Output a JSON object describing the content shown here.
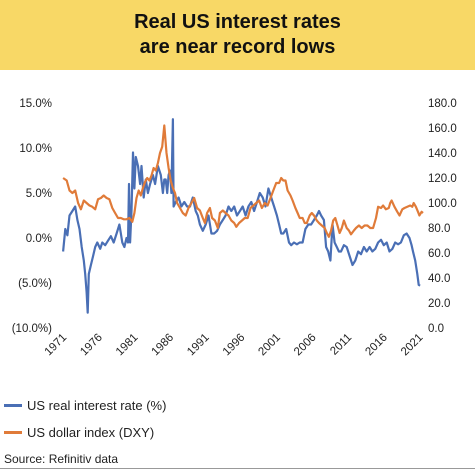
{
  "title": {
    "line1": "Real US interest rates",
    "line2": "are near record lows"
  },
  "colors": {
    "banner": "#f8d866",
    "real_rate": "#4a6fb5",
    "dxy": "#e07b39"
  },
  "chart_data": {
    "type": "line",
    "title": "Real US interest rates are near record lows",
    "x_ticks": [
      "1971",
      "1976",
      "1981",
      "1986",
      "1991",
      "1996",
      "2001",
      "2006",
      "2011",
      "2016",
      "2021"
    ],
    "x_range": [
      1970,
      2021.5
    ],
    "y_left": {
      "ticks": [
        "15.0%",
        "10.0%",
        "5.0%",
        "0.0%",
        "(5.0%)",
        "(10.0%)"
      ],
      "tick_values": [
        15,
        10,
        5,
        0,
        -5,
        -10
      ],
      "range": [
        -10,
        15
      ]
    },
    "y_right": {
      "ticks": [
        "180.0",
        "160.0",
        "140.0",
        "120.0",
        "100.0",
        "80.0",
        "60.0",
        "40.0",
        "20.0",
        "0.0"
      ],
      "tick_values": [
        180,
        160,
        140,
        120,
        100,
        80,
        60,
        40,
        20,
        0
      ],
      "range": [
        0,
        180
      ]
    },
    "grid": false,
    "legend_position": "bottom",
    "source": "Source: Refinitiv data",
    "series": [
      {
        "name": "US real interest rate (%)",
        "axis": "left",
        "color": "#4a6fb5",
        "points": [
          [
            1971.0,
            -1.5
          ],
          [
            1971.3,
            1.0
          ],
          [
            1971.6,
            0.3
          ],
          [
            1971.9,
            2.5
          ],
          [
            1972.3,
            3.0
          ],
          [
            1972.7,
            3.5
          ],
          [
            1973.0,
            2.0
          ],
          [
            1973.3,
            1.0
          ],
          [
            1973.6,
            -1.0
          ],
          [
            1973.9,
            -2.5
          ],
          [
            1974.1,
            -4.0
          ],
          [
            1974.3,
            -6.0
          ],
          [
            1974.45,
            -8.3
          ],
          [
            1974.6,
            -4.0
          ],
          [
            1974.9,
            -3.0
          ],
          [
            1975.2,
            -2.0
          ],
          [
            1975.5,
            -1.0
          ],
          [
            1975.8,
            -0.5
          ],
          [
            1976.2,
            -1.2
          ],
          [
            1976.5,
            -0.5
          ],
          [
            1976.9,
            -0.8
          ],
          [
            1977.3,
            -0.3
          ],
          [
            1977.7,
            0.2
          ],
          [
            1978.1,
            -0.5
          ],
          [
            1978.5,
            0.5
          ],
          [
            1978.9,
            1.5
          ],
          [
            1979.3,
            -0.5
          ],
          [
            1979.6,
            -1.0
          ],
          [
            1979.9,
            0.0
          ],
          [
            1980.1,
            -0.5
          ],
          [
            1980.25,
            6.0
          ],
          [
            1980.4,
            -0.5
          ],
          [
            1980.6,
            3.0
          ],
          [
            1980.8,
            9.5
          ],
          [
            1981.0,
            5.5
          ],
          [
            1981.2,
            9.0
          ],
          [
            1981.5,
            8.0
          ],
          [
            1981.8,
            6.0
          ],
          [
            1982.0,
            8.0
          ],
          [
            1982.3,
            4.5
          ],
          [
            1982.6,
            6.5
          ],
          [
            1982.9,
            5.0
          ],
          [
            1983.2,
            6.0
          ],
          [
            1983.6,
            7.0
          ],
          [
            1983.9,
            6.0
          ],
          [
            1984.3,
            8.0
          ],
          [
            1984.7,
            7.0
          ],
          [
            1985.0,
            5.0
          ],
          [
            1985.2,
            6.5
          ],
          [
            1985.4,
            6.5
          ],
          [
            1985.6,
            5.0
          ],
          [
            1985.8,
            7.0
          ],
          [
            1986.0,
            7.5
          ],
          [
            1986.2,
            5.0
          ],
          [
            1986.4,
            13.2
          ],
          [
            1986.5,
            3.5
          ],
          [
            1986.8,
            4.0
          ],
          [
            1987.2,
            4.5
          ],
          [
            1987.6,
            3.5
          ],
          [
            1988.0,
            4.0
          ],
          [
            1988.4,
            3.5
          ],
          [
            1988.8,
            3.5
          ],
          [
            1989.2,
            4.5
          ],
          [
            1989.6,
            3.0
          ],
          [
            1989.9,
            2.5
          ],
          [
            1990.2,
            1.5
          ],
          [
            1990.6,
            0.8
          ],
          [
            1991.0,
            1.5
          ],
          [
            1991.4,
            2.5
          ],
          [
            1991.8,
            0.5
          ],
          [
            1992.2,
            0.5
          ],
          [
            1992.6,
            0.8
          ],
          [
            1993.0,
            1.5
          ],
          [
            1993.4,
            2.0
          ],
          [
            1993.8,
            2.5
          ],
          [
            1994.2,
            3.5
          ],
          [
            1994.6,
            3.0
          ],
          [
            1995.0,
            3.5
          ],
          [
            1995.4,
            2.5
          ],
          [
            1995.8,
            3.0
          ],
          [
            1996.2,
            3.5
          ],
          [
            1996.6,
            2.5
          ],
          [
            1997.0,
            3.5
          ],
          [
            1997.4,
            4.0
          ],
          [
            1997.8,
            3.0
          ],
          [
            1998.2,
            4.0
          ],
          [
            1998.6,
            5.0
          ],
          [
            1999.0,
            4.5
          ],
          [
            1999.4,
            3.5
          ],
          [
            1999.8,
            5.5
          ],
          [
            2000.2,
            4.5
          ],
          [
            2000.6,
            3.5
          ],
          [
            2001.0,
            2.5
          ],
          [
            2001.3,
            1.5
          ],
          [
            2001.6,
            0.5
          ],
          [
            2001.9,
            0.5
          ],
          [
            2002.3,
            1.0
          ],
          [
            2002.7,
            -0.5
          ],
          [
            2003.0,
            -0.8
          ],
          [
            2003.4,
            -0.5
          ],
          [
            2003.8,
            -0.7
          ],
          [
            2004.2,
            -0.5
          ],
          [
            2004.6,
            -0.5
          ],
          [
            2005.0,
            1.0
          ],
          [
            2005.4,
            1.5
          ],
          [
            2005.8,
            1.5
          ],
          [
            2006.2,
            2.0
          ],
          [
            2006.6,
            2.5
          ],
          [
            2006.9,
            3.0
          ],
          [
            2007.2,
            2.5
          ],
          [
            2007.6,
            2.0
          ],
          [
            2007.9,
            -1.0
          ],
          [
            2008.2,
            -1.5
          ],
          [
            2008.5,
            -2.5
          ],
          [
            2008.8,
            1.5
          ],
          [
            2009.1,
            -0.5
          ],
          [
            2009.4,
            -1.0
          ],
          [
            2009.7,
            -1.5
          ],
          [
            2010.0,
            -1.5
          ],
          [
            2010.4,
            -0.8
          ],
          [
            2010.8,
            -1.0
          ],
          [
            2011.2,
            -2.0
          ],
          [
            2011.6,
            -3.0
          ],
          [
            2012.0,
            -2.5
          ],
          [
            2012.4,
            -1.5
          ],
          [
            2012.8,
            -1.8
          ],
          [
            2013.2,
            -1.0
          ],
          [
            2013.6,
            -1.5
          ],
          [
            2014.0,
            -1.0
          ],
          [
            2014.4,
            -1.5
          ],
          [
            2014.8,
            -1.2
          ],
          [
            2015.2,
            -0.5
          ],
          [
            2015.6,
            -0.2
          ],
          [
            2016.0,
            -0.8
          ],
          [
            2016.4,
            -0.5
          ],
          [
            2016.8,
            -1.5
          ],
          [
            2017.2,
            -1.2
          ],
          [
            2017.6,
            -0.5
          ],
          [
            2018.0,
            -0.7
          ],
          [
            2018.4,
            -0.5
          ],
          [
            2018.8,
            0.3
          ],
          [
            2019.2,
            0.5
          ],
          [
            2019.6,
            0.0
          ],
          [
            2019.9,
            -0.8
          ],
          [
            2020.1,
            -1.5
          ],
          [
            2020.4,
            -2.5
          ],
          [
            2020.7,
            -4.0
          ],
          [
            2020.9,
            -5.2
          ],
          [
            2021.1,
            -5.3
          ]
        ]
      },
      {
        "name": "US dollar index (DXY)",
        "axis": "right",
        "color": "#e07b39",
        "points": [
          [
            1971.0,
            120
          ],
          [
            1971.5,
            118
          ],
          [
            1971.9,
            110
          ],
          [
            1972.3,
            108
          ],
          [
            1972.7,
            110
          ],
          [
            1973.1,
            100
          ],
          [
            1973.5,
            95
          ],
          [
            1973.9,
            102
          ],
          [
            1974.3,
            100
          ],
          [
            1974.7,
            98
          ],
          [
            1975.1,
            97
          ],
          [
            1975.5,
            95
          ],
          [
            1975.9,
            103
          ],
          [
            1976.3,
            104
          ],
          [
            1976.7,
            106
          ],
          [
            1977.1,
            104
          ],
          [
            1977.5,
            103
          ],
          [
            1977.9,
            96
          ],
          [
            1978.3,
            92
          ],
          [
            1978.7,
            88
          ],
          [
            1979.1,
            88
          ],
          [
            1979.5,
            87
          ],
          [
            1979.9,
            87
          ],
          [
            1980.3,
            88
          ],
          [
            1980.7,
            85
          ],
          [
            1981.0,
            92
          ],
          [
            1981.3,
            104
          ],
          [
            1981.6,
            110
          ],
          [
            1981.9,
            106
          ],
          [
            1982.2,
            112
          ],
          [
            1982.5,
            117
          ],
          [
            1982.8,
            120
          ],
          [
            1983.1,
            118
          ],
          [
            1983.4,
            122
          ],
          [
            1983.7,
            128
          ],
          [
            1984.0,
            126
          ],
          [
            1984.3,
            132
          ],
          [
            1984.6,
            140
          ],
          [
            1984.9,
            145
          ],
          [
            1985.2,
            162
          ],
          [
            1985.5,
            140
          ],
          [
            1985.8,
            128
          ],
          [
            1986.1,
            118
          ],
          [
            1986.4,
            112
          ],
          [
            1986.7,
            108
          ],
          [
            1987.0,
            100
          ],
          [
            1987.4,
            96
          ],
          [
            1987.8,
            92
          ],
          [
            1988.2,
            90
          ],
          [
            1988.6,
            96
          ],
          [
            1989.0,
            100
          ],
          [
            1989.4,
            104
          ],
          [
            1989.8,
            96
          ],
          [
            1990.2,
            94
          ],
          [
            1990.6,
            88
          ],
          [
            1990.9,
            84
          ],
          [
            1991.2,
            92
          ],
          [
            1991.6,
            96
          ],
          [
            1991.9,
            88
          ],
          [
            1992.3,
            86
          ],
          [
            1992.7,
            80
          ],
          [
            1993.0,
            92
          ],
          [
            1993.4,
            94
          ],
          [
            1993.8,
            92
          ],
          [
            1994.2,
            90
          ],
          [
            1994.6,
            86
          ],
          [
            1995.0,
            84
          ],
          [
            1995.3,
            81
          ],
          [
            1995.7,
            84
          ],
          [
            1996.1,
            86
          ],
          [
            1996.5,
            88
          ],
          [
            1996.9,
            88
          ],
          [
            1997.3,
            96
          ],
          [
            1997.7,
            98
          ],
          [
            1998.1,
            100
          ],
          [
            1998.5,
            102
          ],
          [
            1998.9,
            96
          ],
          [
            1999.3,
            100
          ],
          [
            1999.7,
            98
          ],
          [
            2000.1,
            104
          ],
          [
            2000.5,
            110
          ],
          [
            2000.9,
            116
          ],
          [
            2001.3,
            116
          ],
          [
            2001.6,
            120
          ],
          [
            2001.9,
            118
          ],
          [
            2002.2,
            118
          ],
          [
            2002.5,
            110
          ],
          [
            2002.9,
            106
          ],
          [
            2003.2,
            102
          ],
          [
            2003.6,
            96
          ],
          [
            2003.9,
            92
          ],
          [
            2004.2,
            88
          ],
          [
            2004.6,
            88
          ],
          [
            2004.9,
            84
          ],
          [
            2005.2,
            84
          ],
          [
            2005.6,
            90
          ],
          [
            2005.9,
            92
          ],
          [
            2006.2,
            90
          ],
          [
            2006.6,
            86
          ],
          [
            2006.9,
            84
          ],
          [
            2007.3,
            82
          ],
          [
            2007.7,
            80
          ],
          [
            2008.0,
            76
          ],
          [
            2008.3,
            73
          ],
          [
            2008.6,
            78
          ],
          [
            2008.9,
            86
          ],
          [
            2009.2,
            88
          ],
          [
            2009.5,
            82
          ],
          [
            2009.8,
            76
          ],
          [
            2010.1,
            80
          ],
          [
            2010.4,
            86
          ],
          [
            2010.8,
            80
          ],
          [
            2011.1,
            78
          ],
          [
            2011.4,
            75
          ],
          [
            2011.8,
            78
          ],
          [
            2012.1,
            80
          ],
          [
            2012.5,
            82
          ],
          [
            2012.9,
            80
          ],
          [
            2013.3,
            82
          ],
          [
            2013.7,
            82
          ],
          [
            2014.1,
            80
          ],
          [
            2014.5,
            80
          ],
          [
            2014.9,
            88
          ],
          [
            2015.2,
            97
          ],
          [
            2015.6,
            96
          ],
          [
            2015.9,
            98
          ],
          [
            2016.3,
            95
          ],
          [
            2016.7,
            96
          ],
          [
            2016.9,
            100
          ],
          [
            2017.1,
            102
          ],
          [
            2017.5,
            97
          ],
          [
            2017.9,
            93
          ],
          [
            2018.2,
            90
          ],
          [
            2018.6,
            95
          ],
          [
            2018.9,
            96
          ],
          [
            2019.3,
            97
          ],
          [
            2019.7,
            98
          ],
          [
            2020.0,
            97
          ],
          [
            2020.2,
            100
          ],
          [
            2020.5,
            97
          ],
          [
            2020.8,
            93
          ],
          [
            2021.0,
            90
          ],
          [
            2021.3,
            93
          ],
          [
            2021.5,
            92
          ]
        ]
      }
    ]
  }
}
